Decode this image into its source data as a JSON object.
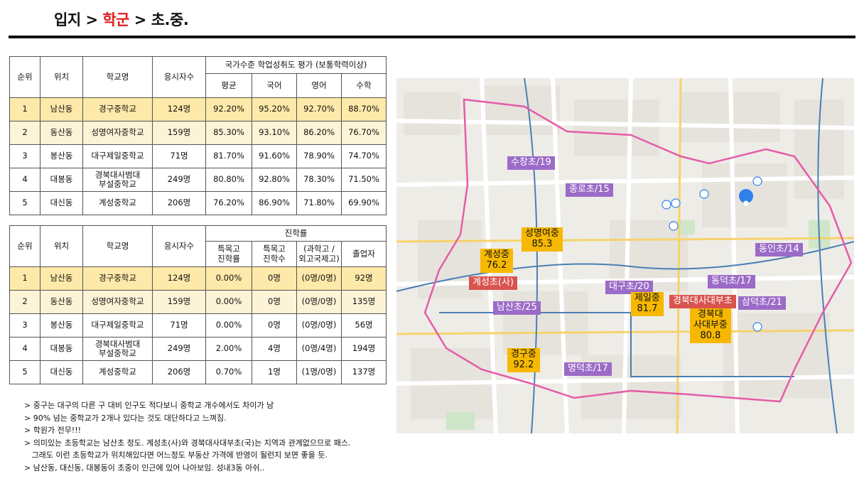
{
  "header": {
    "part1": "입지 > ",
    "part2": "학군",
    "part3": " > 초.중."
  },
  "table1": {
    "headers": {
      "rank": "순위",
      "location": "위치",
      "school": "학교명",
      "examinees": "응시자수",
      "group": "국가수준 학업성취도 평가 (보통학력이상)",
      "avg": "평균",
      "korean": "국어",
      "english": "영어",
      "math": "수학"
    },
    "rows": [
      {
        "rank": "1",
        "location": "남산동",
        "school": "경구중학교",
        "examinees": "124명",
        "avg": "92.20%",
        "korean": "95.20%",
        "english": "92.70%",
        "math": "88.70%"
      },
      {
        "rank": "2",
        "location": "동산동",
        "school": "성명여자중학교",
        "examinees": "159명",
        "avg": "85.30%",
        "korean": "93.10%",
        "english": "86.20%",
        "math": "76.70%"
      },
      {
        "rank": "3",
        "location": "봉산동",
        "school": "대구제일중학교",
        "examinees": "71명",
        "avg": "81.70%",
        "korean": "91.60%",
        "english": "78.90%",
        "math": "74.70%"
      },
      {
        "rank": "4",
        "location": "대봉동",
        "school": "경북대사범대\n부설중학교",
        "examinees": "249명",
        "avg": "80.80%",
        "korean": "92.80%",
        "english": "78.30%",
        "math": "71.50%"
      },
      {
        "rank": "5",
        "location": "대신동",
        "school": "계성중학교",
        "examinees": "206명",
        "avg": "76.20%",
        "korean": "86.90%",
        "english": "71.80%",
        "math": "69.90%"
      }
    ]
  },
  "table2": {
    "headers": {
      "rank": "순위",
      "location": "위치",
      "school": "학교명",
      "examinees": "응시자수",
      "group": "진학률",
      "special_rate": "특목고\n진학률",
      "special_count": "특목고\n진학수",
      "sci_foreign": "(과학고 /\n외고국제고)",
      "graduates": "졸업자"
    },
    "rows": [
      {
        "rank": "1",
        "location": "남산동",
        "school": "경구중학교",
        "examinees": "124명",
        "special_rate": "0.00%",
        "special_count": "0명",
        "sci_foreign": "(0명/0명)",
        "graduates": "92명"
      },
      {
        "rank": "2",
        "location": "동산동",
        "school": "성명여자중학교",
        "examinees": "159명",
        "special_rate": "0.00%",
        "special_count": "0명",
        "sci_foreign": "(0명/0명)",
        "graduates": "135명"
      },
      {
        "rank": "3",
        "location": "봉산동",
        "school": "대구제일중학교",
        "examinees": "71명",
        "special_rate": "0.00%",
        "special_count": "0명",
        "sci_foreign": "(0명/0명)",
        "graduates": "56명"
      },
      {
        "rank": "4",
        "location": "대봉동",
        "school": "경북대사범대\n부설중학교",
        "examinees": "249명",
        "special_rate": "2.00%",
        "special_count": "4명",
        "sci_foreign": "(0명/4명)",
        "graduates": "194명"
      },
      {
        "rank": "5",
        "location": "대신동",
        "school": "계성중학교",
        "examinees": "206명",
        "special_rate": "0.70%",
        "special_count": "1명",
        "sci_foreign": "(1명/0명)",
        "graduates": "137명"
      }
    ]
  },
  "notes": [
    "> 중구는 대구의 다른 구 대비 인구도 적다보니 중학교 개수에서도 차이가 남",
    "> 90% 넘는 중학교가 2개나 있다는 것도 대단하다고 느껴짐.",
    "> 학원가 전무!!!",
    "> 의미있는 초등학교는 남산초 정도. 계성초(사)와 경북대사대부초(국)는 지역과 관계없으므로 패스.",
    "   그래도 이런 초등학교가 위치해있다면 어느정도 부동산 가격에 반영이 될런지 보면 좋을 듯.",
    "> 남산동, 대신동, 대봉동이 초중이 인근에 있어 나아보임. 성내3동 아쉬.."
  ],
  "map": {
    "labels": {
      "sucham": "수창초/19",
      "jongno": "종로초/15",
      "dongin": "동인초/14",
      "seongmyeong": "성명여중\n85.3",
      "gyeseong_mid": "계성중\n76.2",
      "gyeseong_elem": "계성초(사)",
      "namsan": "남산초/25",
      "daegu": "대구초/20",
      "dongdeok": "동덕초/17",
      "jeil": "제일중\n81.7",
      "knu_elem": "경북대사대부초",
      "sangdeok": "삼덕초/21",
      "knu_mid": "경북대\n사대부중\n80.8",
      "gyeonggu": "경구중\n92.2",
      "myeongdeok": "명덕초/17"
    },
    "colors": {
      "elementary": "#9b6bc7",
      "middle": "#f6b800",
      "private": "#d9534f",
      "boundary": "#e55ca8",
      "pin": "#2f80ed"
    }
  }
}
